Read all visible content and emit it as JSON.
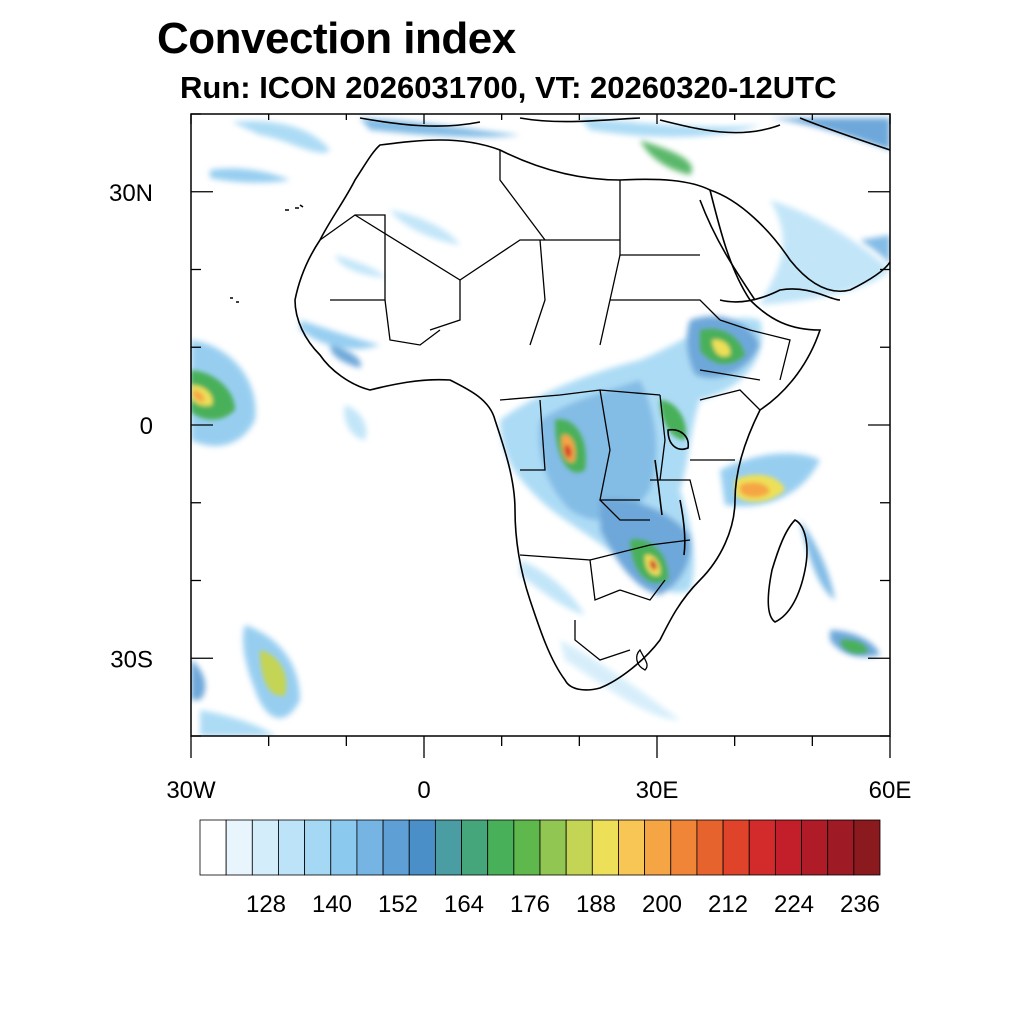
{
  "title": "Convection index",
  "subtitle": "Run: ICON 2026031700,  VT: 20260320-12UTC",
  "lat_ticks": [
    {
      "label": "30N",
      "value": 30
    },
    {
      "label": "0",
      "value": 0
    },
    {
      "label": "30S",
      "value": -30
    }
  ],
  "lon_ticks": [
    {
      "label": "30W",
      "value": -30
    },
    {
      "label": "0",
      "value": 0
    },
    {
      "label": "30E",
      "value": 30
    },
    {
      "label": "60E",
      "value": 60
    }
  ],
  "extent": {
    "lon_min": -30,
    "lon_max": 60,
    "lat_min": -40,
    "lat_max": 40
  },
  "colorbar": {
    "labels": [
      "128",
      "140",
      "152",
      "164",
      "176",
      "188",
      "200",
      "212",
      "224",
      "236"
    ],
    "colors": [
      "#ffffff",
      "#e8f5fd",
      "#d3edfa",
      "#bce3f8",
      "#a4d8f4",
      "#8cc9ef",
      "#76b5e3",
      "#5e9fd6",
      "#4a8fc7",
      "#4a9ea3",
      "#45a67c",
      "#49b05a",
      "#5eb84c",
      "#92c652",
      "#c4d455",
      "#ede058",
      "#f8c654",
      "#f6a545",
      "#f08437",
      "#e7632e",
      "#df442a",
      "#d32a2b",
      "#c21f2a",
      "#b01b28",
      "#9e1a24",
      "#8a1a1e"
    ]
  },
  "colors": {
    "coast": "#000000",
    "light": "#a4d8f4",
    "mid": "#5e9fd6",
    "green": "#49b05a",
    "yellow": "#ede058",
    "orange": "#f6a545",
    "red": "#d32a2b"
  }
}
